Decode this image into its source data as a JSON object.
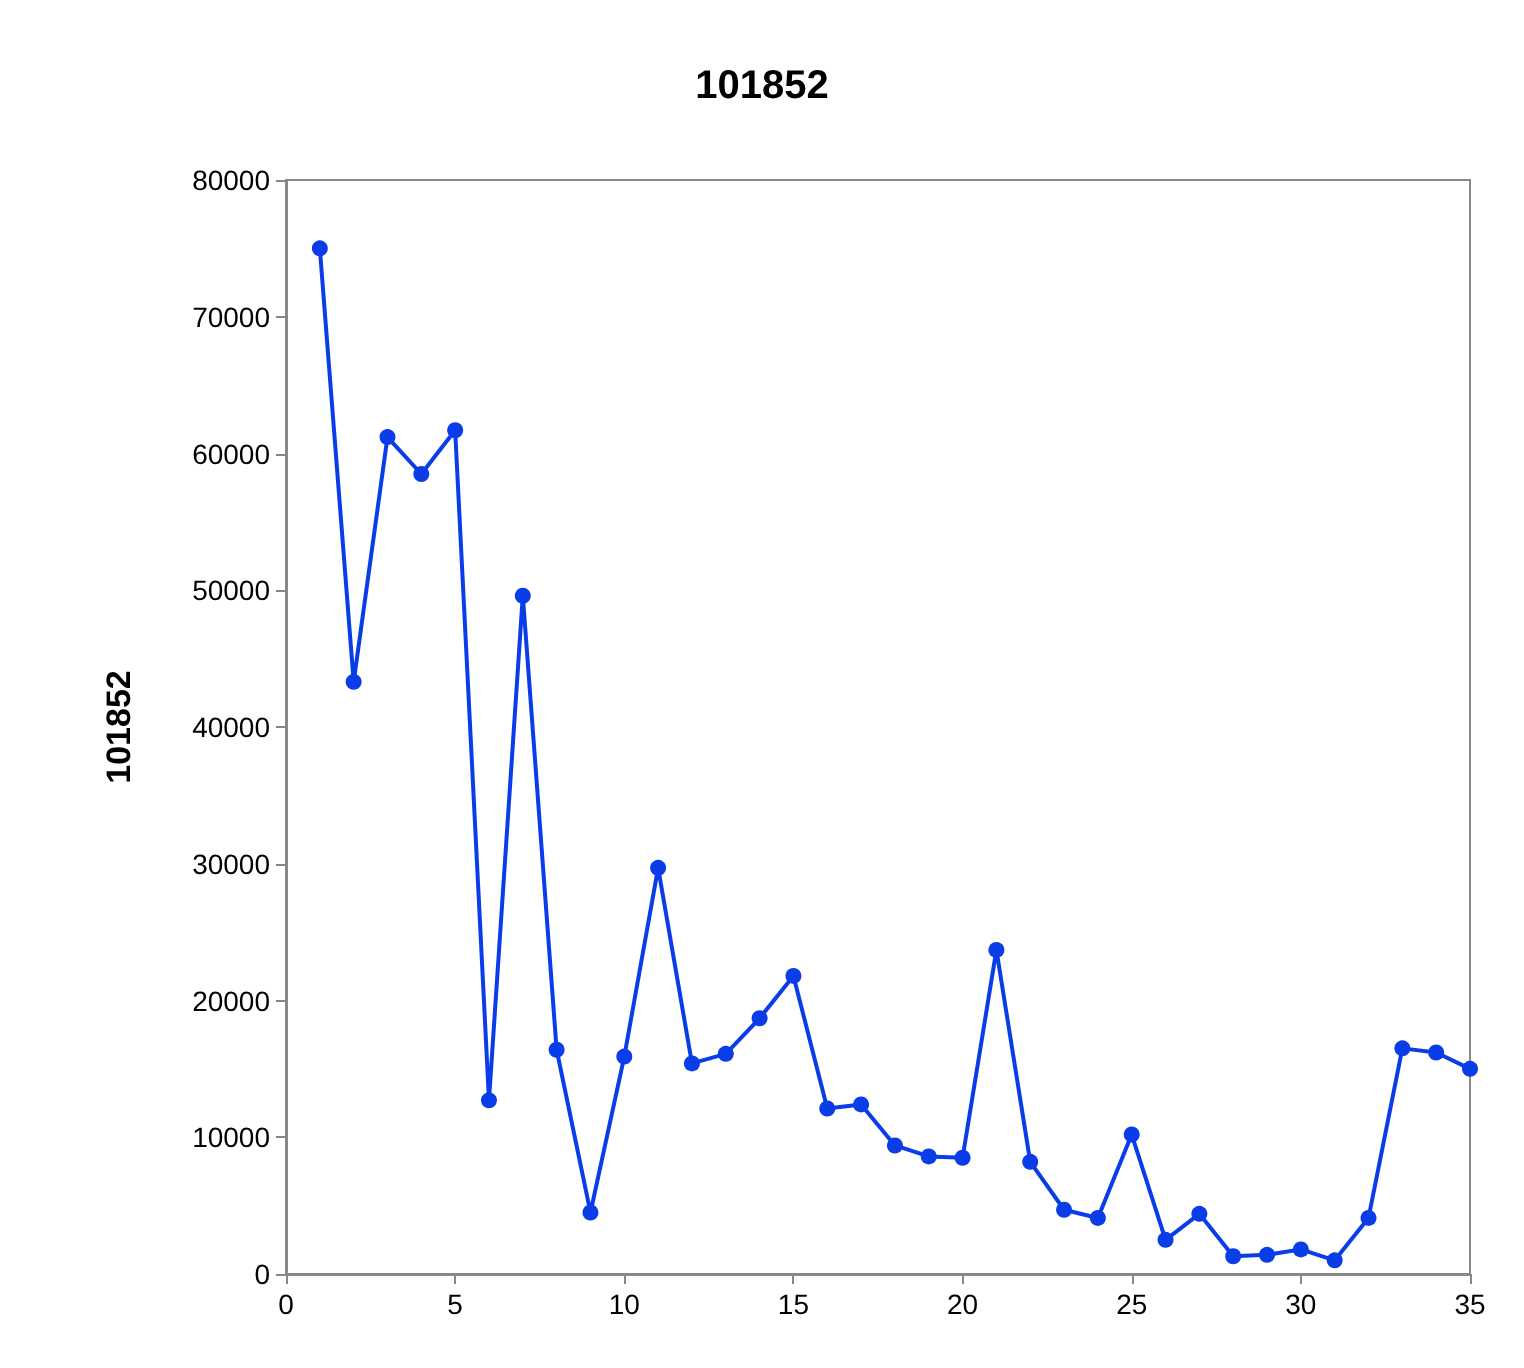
{
  "chart_data": {
    "type": "line",
    "title": "101852",
    "ylabel": "101852",
    "x": [
      1,
      2,
      3,
      4,
      5,
      6,
      7,
      8,
      9,
      10,
      11,
      12,
      13,
      14,
      15,
      16,
      17,
      18,
      19,
      20,
      21,
      22,
      23,
      24,
      25,
      26,
      27,
      28,
      29,
      30,
      31,
      32,
      33,
      34,
      35
    ],
    "series": [
      {
        "color": "#0a3de8",
        "values": [
          75000,
          43300,
          61200,
          58500,
          61700,
          12700,
          49600,
          16400,
          4500,
          15900,
          29700,
          15400,
          16100,
          18700,
          21800,
          12100,
          12400,
          9400,
          8600,
          8500,
          23700,
          8200,
          4700,
          4100,
          10200,
          2500,
          4400,
          1300,
          1400,
          1800,
          1000,
          4100,
          16500,
          16200,
          15000
        ]
      }
    ],
    "xlim": [
      0,
      35
    ],
    "xticks": [
      0,
      5,
      10,
      15,
      20,
      25,
      30,
      35
    ],
    "ylim": [
      0,
      80000
    ],
    "yticks": [
      0,
      10000,
      20000,
      30000,
      40000,
      50000,
      60000,
      70000,
      80000
    ],
    "grid": false,
    "marker": "circle",
    "line_style": "solid"
  }
}
